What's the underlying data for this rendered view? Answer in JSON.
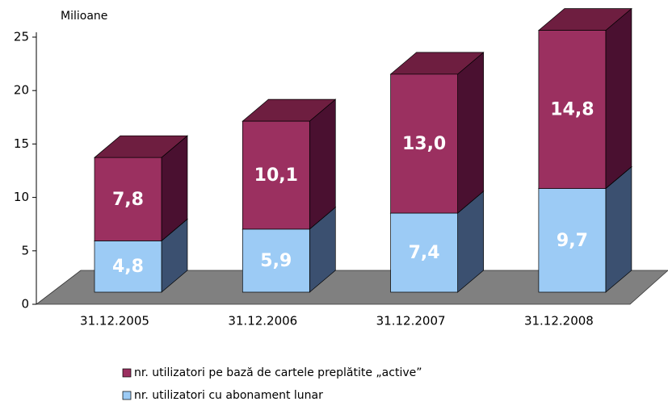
{
  "chart_data": {
    "type": "bar3d_stacked",
    "y_axis_label": "Milioane",
    "categories": [
      "31.12.2005",
      "31.12.2006",
      "31.12.2007",
      "31.12.2008"
    ],
    "series": [
      {
        "name": "nr. utilizatori cu abonament lunar",
        "color": "#9ccbf5",
        "values": [
          4.8,
          5.9,
          7.4,
          9.7
        ],
        "value_labels": [
          "4,8",
          "5,9",
          "7,4",
          "9,7"
        ]
      },
      {
        "name": "nr. utilizatori pe bază de cartele preplătite „active”",
        "color": "#9b3060",
        "values": [
          7.8,
          10.1,
          13.0,
          14.8
        ],
        "value_labels": [
          "7,8",
          "10,1",
          "13,0",
          "14,8"
        ]
      }
    ],
    "ylim": [
      0,
      25
    ],
    "yticks": [
      0,
      5,
      10,
      15,
      20,
      25
    ]
  }
}
